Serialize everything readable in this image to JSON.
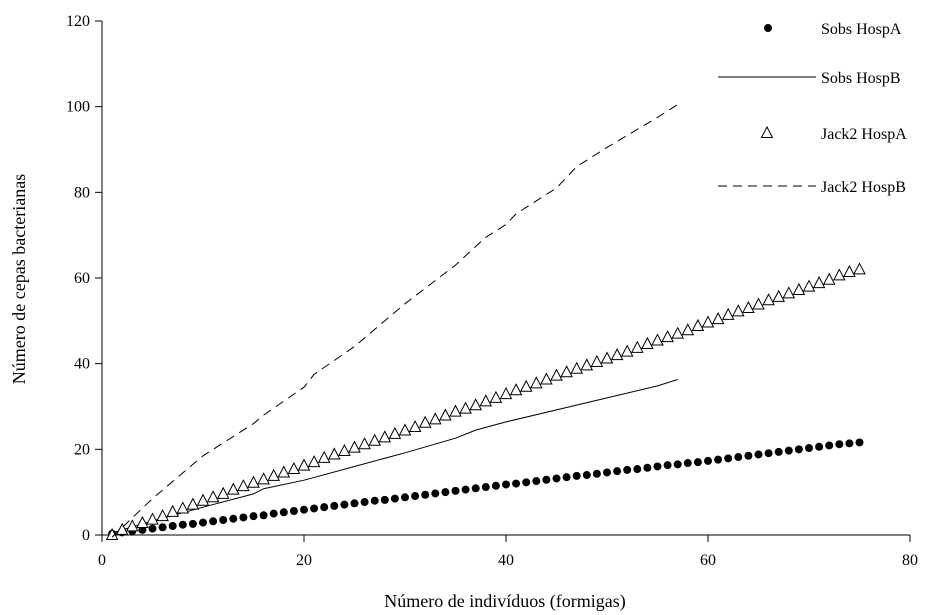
{
  "chart_data": {
    "type": "scatter",
    "title": "",
    "xlabel": "Número de indivíduos (formigas)",
    "ylabel": "Número de cepas bacterianas",
    "xlim": [
      0,
      80
    ],
    "ylim": [
      0,
      120
    ],
    "xticks": [
      0,
      20,
      40,
      60,
      80
    ],
    "yticks": [
      0,
      20,
      40,
      60,
      80,
      100,
      120
    ],
    "grid": false,
    "legend_position": "top-right",
    "series": [
      {
        "name": "Sobs HospA",
        "marker": "filled-circle",
        "color": "#000000",
        "x": [
          1,
          2,
          3,
          4,
          5,
          6,
          7,
          8,
          9,
          10,
          11,
          12,
          13,
          14,
          15,
          16,
          17,
          18,
          19,
          20,
          21,
          22,
          23,
          24,
          25,
          26,
          27,
          28,
          29,
          30,
          31,
          32,
          33,
          34,
          35,
          36,
          37,
          38,
          39,
          40,
          41,
          42,
          43,
          44,
          45,
          46,
          47,
          48,
          49,
          50,
          51,
          52,
          53,
          54,
          55,
          56,
          57,
          58,
          59,
          60,
          61,
          62,
          63,
          64,
          65,
          66,
          67,
          68,
          69,
          70,
          71,
          72,
          73,
          74,
          75
        ],
        "y": [
          0.3,
          0.6,
          0.9,
          1.2,
          1.5,
          1.8,
          2.1,
          2.4,
          2.6,
          2.9,
          3.2,
          3.5,
          3.8,
          4.1,
          4.4,
          4.6,
          5.0,
          5.3,
          5.6,
          5.9,
          6.2,
          6.5,
          6.8,
          7.1,
          7.4,
          7.7,
          8.0,
          8.2,
          8.5,
          8.8,
          9.1,
          9.4,
          9.7,
          10.0,
          10.3,
          10.6,
          10.9,
          11.2,
          11.5,
          11.8,
          12.0,
          12.3,
          12.6,
          12.9,
          13.2,
          13.5,
          13.8,
          14.0,
          14.3,
          14.6,
          14.9,
          15.2,
          15.4,
          15.7,
          16.0,
          16.3,
          16.5,
          16.8,
          17.0,
          17.3,
          17.6,
          17.9,
          18.2,
          18.5,
          18.8,
          19.1,
          19.4,
          19.7,
          20.0,
          20.3,
          20.6,
          20.9,
          21.2,
          21.4,
          21.6
        ]
      },
      {
        "name": "Sobs HospB",
        "marker": "solid-line",
        "color": "#000000",
        "x": [
          1,
          5,
          10,
          15,
          16,
          20,
          25,
          30,
          35,
          37,
          40,
          45,
          50,
          55,
          57
        ],
        "y": [
          0.5,
          3.3,
          6.5,
          9.6,
          10.8,
          12.8,
          16.0,
          19.2,
          22.6,
          24.5,
          26.4,
          29.2,
          32.0,
          34.8,
          36.3
        ]
      },
      {
        "name": "Jack2 HospA",
        "marker": "open-triangle",
        "color": "#000000",
        "x": [
          1,
          2,
          3,
          4,
          5,
          6,
          7,
          8,
          9,
          10,
          11,
          12,
          13,
          14,
          15,
          16,
          17,
          18,
          19,
          20,
          21,
          22,
          23,
          24,
          25,
          26,
          27,
          28,
          29,
          30,
          31,
          32,
          33,
          34,
          35,
          36,
          37,
          38,
          39,
          40,
          41,
          42,
          43,
          44,
          45,
          46,
          47,
          48,
          49,
          50,
          51,
          52,
          53,
          54,
          55,
          56,
          57,
          58,
          59,
          60,
          61,
          62,
          63,
          64,
          65,
          66,
          67,
          68,
          69,
          70,
          71,
          72,
          73,
          74,
          75
        ],
        "y": [
          0.0,
          1.2,
          2.0,
          2.8,
          3.6,
          4.4,
          5.4,
          6.2,
          7.1,
          8.0,
          8.8,
          9.6,
          10.6,
          11.4,
          12.2,
          13.0,
          13.8,
          14.6,
          15.4,
          16.2,
          17.0,
          18.0,
          18.8,
          19.6,
          20.4,
          21.2,
          22.0,
          22.8,
          23.6,
          24.4,
          25.2,
          26.2,
          27.0,
          27.9,
          28.8,
          29.5,
          30.3,
          31.2,
          32.0,
          32.9,
          33.8,
          34.6,
          35.4,
          36.3,
          37.2,
          38.0,
          38.8,
          39.6,
          40.4,
          41.2,
          42.0,
          42.8,
          43.7,
          44.6,
          45.4,
          46.2,
          47.0,
          47.8,
          48.8,
          49.6,
          50.4,
          51.4,
          52.2,
          53.0,
          53.8,
          54.8,
          55.6,
          56.4,
          57.2,
          58.0,
          58.8,
          59.6,
          60.6,
          61.4,
          62.0
        ]
      },
      {
        "name": "Jack2 HospB",
        "marker": "dashed-line",
        "color": "#000000",
        "x": [
          1,
          5,
          10,
          15,
          16,
          20,
          21,
          25,
          30,
          35,
          38,
          40,
          41,
          45,
          47,
          50,
          55,
          57
        ],
        "y": [
          -0.5,
          8.5,
          18.5,
          26.0,
          28.0,
          34.5,
          37.5,
          44.0,
          54.0,
          63.0,
          69.5,
          72.5,
          75.0,
          81.0,
          86.0,
          90.5,
          97.5,
          100.5
        ]
      }
    ]
  }
}
